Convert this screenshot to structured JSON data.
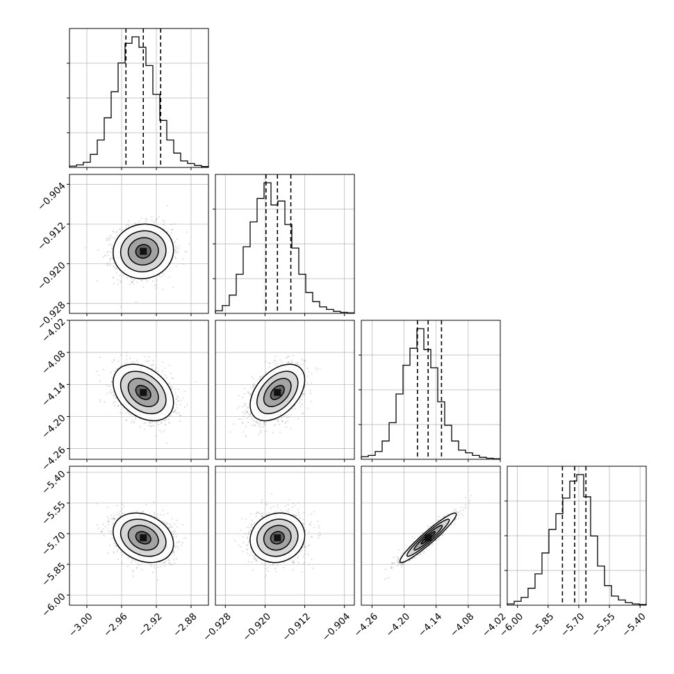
{
  "colors": {
    "ink": "#000000",
    "grid": "#b0b0b0",
    "scatter": "#888888",
    "hist_fill": "#000000"
  },
  "chart_data": {
    "type": "corner",
    "title": "",
    "grid": true,
    "parameters": [
      {
        "range": [
          -3.02,
          -2.86
        ],
        "ticks": [
          -3.0,
          -2.96,
          -2.92,
          -2.88
        ],
        "tick_labels": [
          "−3.00",
          "−2.96",
          "−2.92",
          "−2.88"
        ],
        "quantiles": [
          -2.955,
          -2.935,
          -2.915
        ],
        "median": -2.935,
        "sd": 0.0158,
        "hist": [
          0.01,
          0.02,
          0.04,
          0.1,
          0.21,
          0.38,
          0.58,
          0.8,
          0.95,
          1.0,
          0.92,
          0.78,
          0.56,
          0.36,
          0.21,
          0.11,
          0.05,
          0.03,
          0.015,
          0.007
        ]
      },
      {
        "range": [
          -0.93,
          -0.902
        ],
        "ticks": [
          -0.928,
          -0.92,
          -0.912,
          -0.904
        ],
        "tick_labels": [
          "−0.928",
          "−0.920",
          "−0.912",
          "−0.904"
        ],
        "quantiles": [
          -0.9198,
          -0.9175,
          -0.9148
        ],
        "median": -0.9175,
        "sd": 0.0025,
        "hist": [
          0.02,
          0.06,
          0.14,
          0.3,
          0.51,
          0.7,
          0.88,
          1.0,
          0.83,
          0.86,
          0.68,
          0.5,
          0.3,
          0.16,
          0.09,
          0.05,
          0.03,
          0.015,
          0.008,
          0.004
        ]
      },
      {
        "range": [
          -4.28,
          -4.02
        ],
        "ticks": [
          -4.26,
          -4.2,
          -4.14,
          -4.08,
          -4.02
        ],
        "tick_labels": [
          "−4.26",
          "−4.20",
          "−4.14",
          "−4.08",
          "−4.02"
        ],
        "quantiles": [
          -4.175,
          -4.155,
          -4.13
        ],
        "median": -4.155,
        "sd": 0.024,
        "hist": [
          0.02,
          0.03,
          0.06,
          0.14,
          0.28,
          0.5,
          0.72,
          0.85,
          1.0,
          0.84,
          0.7,
          0.44,
          0.26,
          0.14,
          0.07,
          0.05,
          0.03,
          0.015,
          0.008,
          0.004
        ]
      },
      {
        "range": [
          -6.05,
          -5.37
        ],
        "ticks": [
          -6.0,
          -5.85,
          -5.7,
          -5.55,
          -5.4
        ],
        "tick_labels": [
          "−6.00",
          "−5.85",
          "−5.70",
          "−5.55",
          "−5.40"
        ],
        "quantiles": [
          -5.78,
          -5.72,
          -5.665
        ],
        "median": -5.72,
        "sd": 0.055,
        "hist": [
          0.01,
          0.03,
          0.06,
          0.13,
          0.24,
          0.4,
          0.58,
          0.7,
          0.82,
          0.95,
          1.0,
          0.83,
          0.53,
          0.3,
          0.15,
          0.07,
          0.04,
          0.02,
          0.01,
          0.005
        ]
      }
    ],
    "correlations": {
      "1,0": 0.05,
      "2,0": -0.35,
      "2,1": 0.45,
      "3,0": -0.25,
      "3,1": 0.1,
      "3,2": 0.95
    },
    "contour_levels_sigma": [
      0.5,
      1.0,
      1.5,
      2.0
    ]
  }
}
